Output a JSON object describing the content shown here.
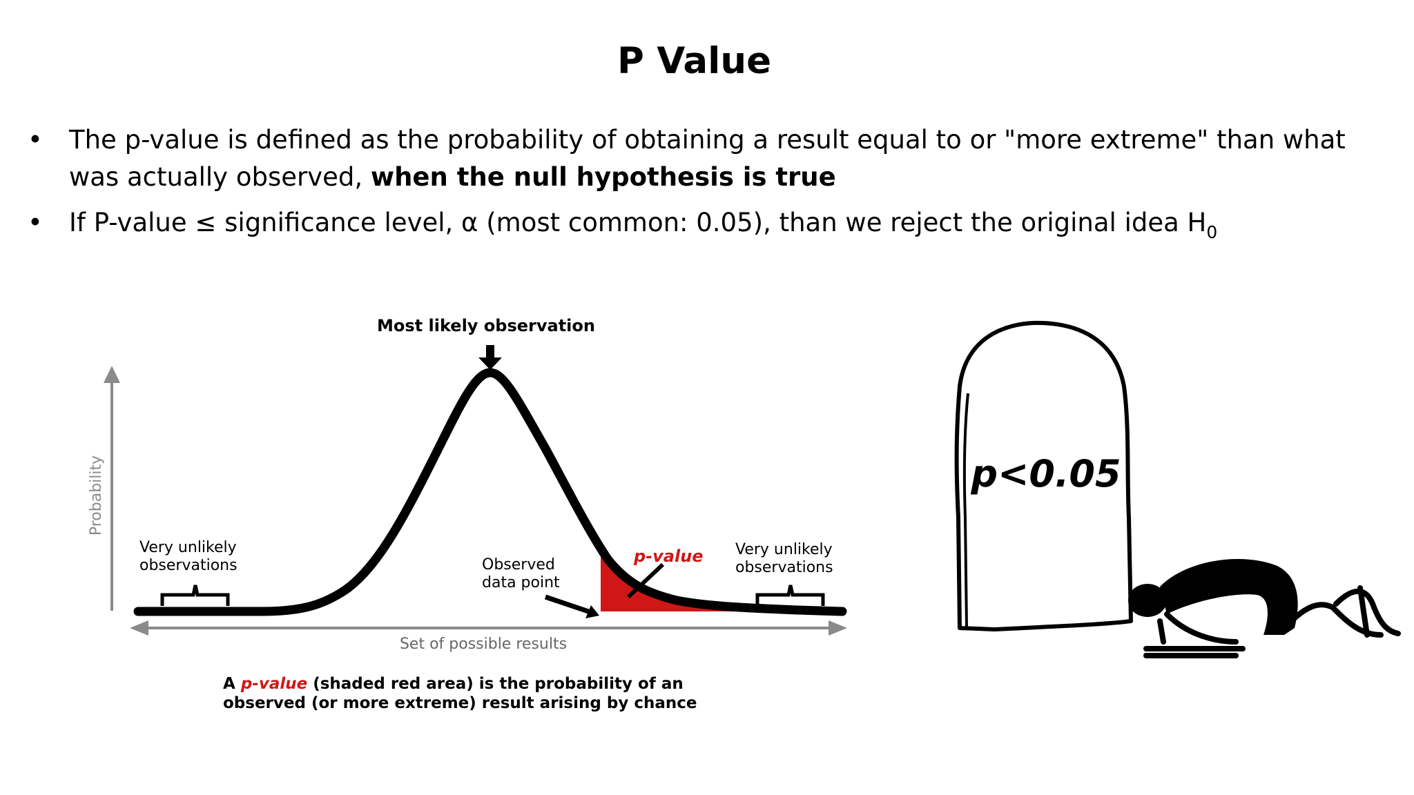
{
  "slide": {
    "title": "P Value",
    "bullets": [
      {
        "text_before": "The p-value is defined as the probability of obtaining a result equal to or \"more extreme\" than what was actually observed, ",
        "bold": "when the null hypothesis is true"
      },
      {
        "text_before": "If P-value ≤ significance level, α (most common:  0.05), than we reject the original idea H",
        "subscript": "0"
      }
    ]
  },
  "figure": {
    "top_label": "Most likely observation",
    "y_axis_label": "Probability",
    "x_axis_label": "Set of possible results",
    "left_tail_label": [
      "Very unlikely",
      "observations"
    ],
    "right_tail_label": [
      "Very unlikely",
      "observations"
    ],
    "observed_label": [
      "Observed",
      "data point"
    ],
    "pvalue_label": "p-value",
    "caption_prefix": "A ",
    "caption_pvalue": "p-value",
    "caption_line1_rest": " (shaded red area) is the probability of an",
    "caption_line2": "observed (or more extreme) result arising by chance",
    "colors": {
      "curve": "#000000",
      "shade": "#d01717",
      "axis": "#8a8a8a"
    }
  },
  "cartoon": {
    "tablet_text": "p<0.05"
  }
}
